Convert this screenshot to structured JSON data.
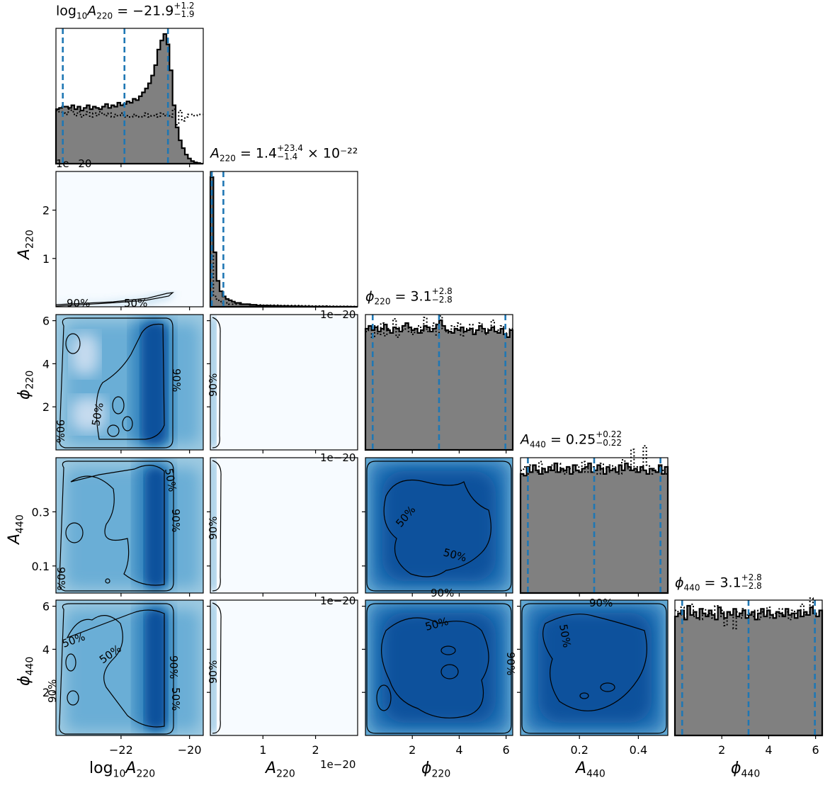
{
  "chart_data": {
    "type": "corner",
    "parameters": [
      {
        "key": "log10A220",
        "label_base": "log",
        "label_base_sub": "10",
        "label_main": "A",
        "label_sub": "220",
        "range": [
          -23.9,
          -19.6
        ],
        "ticks": [
          -22,
          -20
        ],
        "tick_labels": [
          "−22",
          "−20"
        ],
        "title_value": "−21.9",
        "title_plus": "+1.2",
        "title_minus": "−1.9",
        "quantiles": [
          -23.7,
          -21.9,
          -20.63
        ],
        "hist": [
          0.42,
          0.43,
          0.44,
          0.44,
          0.43,
          0.45,
          0.42,
          0.44,
          0.41,
          0.43,
          0.45,
          0.42,
          0.44,
          0.43,
          0.42,
          0.44,
          0.46,
          0.43,
          0.45,
          0.44,
          0.47,
          0.45,
          0.46,
          0.48,
          0.47,
          0.5,
          0.49,
          0.52,
          0.55,
          0.58,
          0.62,
          0.68,
          0.76,
          0.88,
          0.95,
          1.0,
          0.92,
          0.72,
          0.45,
          0.28,
          0.18,
          0.12,
          0.07,
          0.04,
          0.02,
          0.01,
          0.005,
          0.0
        ],
        "prior": [
          0.41,
          0.4,
          0.39,
          0.38,
          0.42,
          0.4,
          0.37,
          0.4,
          0.36,
          0.38,
          0.4,
          0.36,
          0.39,
          0.37,
          0.4,
          0.38,
          0.37,
          0.39,
          0.36,
          0.38,
          0.37,
          0.39,
          0.36,
          0.37,
          0.36,
          0.38,
          0.37,
          0.36,
          0.37,
          0.39,
          0.36,
          0.37,
          0.38,
          0.36,
          0.39,
          0.37,
          0.38,
          0.36,
          0.42,
          0.3,
          0.41,
          0.33,
          0.36,
          0.38,
          0.38,
          0.37,
          0.38,
          0.38
        ]
      },
      {
        "key": "A220",
        "label_main": "A",
        "label_sub": "220",
        "range": [
          0,
          2.8
        ],
        "ticks": [
          1,
          2
        ],
        "tick_labels": [
          "1",
          "2"
        ],
        "offset_label": "1e−20",
        "title_value": "1.4",
        "title_plus": "+23.4",
        "title_minus": "−1.4",
        "title_suffix": "× 10⁻²²",
        "quantiles": [
          0.0,
          0.014,
          0.248
        ],
        "hist": [
          1.0,
          0.42,
          0.2,
          0.12,
          0.08,
          0.06,
          0.05,
          0.04,
          0.03,
          0.03,
          0.02,
          0.02,
          0.02,
          0.015,
          0.015,
          0.01,
          0.01,
          0.01,
          0.01,
          0.008,
          0.008,
          0.007,
          0.007,
          0.006,
          0.006,
          0.005,
          0.005,
          0.004,
          0.004,
          0.004,
          0.003,
          0.003,
          0.003,
          0.002,
          0.002,
          0.002,
          0.002,
          0.002,
          0.001,
          0.001,
          0.001,
          0.001,
          0.001,
          0.001,
          0.001,
          0.001,
          0.0,
          0.0
        ],
        "prior": [
          0.4,
          0.08,
          0.05,
          0.04,
          0.03,
          0.03,
          0.02,
          0.02,
          0.02,
          0.02,
          0.02,
          0.02,
          0.015,
          0.015,
          0.015,
          0.015,
          0.015,
          0.012,
          0.012,
          0.012,
          0.012,
          0.012,
          0.01,
          0.01,
          0.01,
          0.01,
          0.01,
          0.01,
          0.01,
          0.008,
          0.008,
          0.008,
          0.008,
          0.006,
          0.006,
          0.006,
          0.006,
          0.006,
          0.005,
          0.005,
          0.005,
          0.004,
          0.004,
          0.004,
          0.004,
          0.003,
          0.003,
          0.003
        ]
      },
      {
        "key": "phi220",
        "label_main": "ϕ",
        "label_sub": "220",
        "range": [
          0,
          6.283
        ],
        "ticks": [
          2,
          4,
          6
        ],
        "tick_labels": [
          "2",
          "4",
          "6"
        ],
        "title_value": "3.1",
        "title_plus": "+2.8",
        "title_minus": "−2.8",
        "quantiles": [
          0.31,
          3.14,
          5.97
        ],
        "hist": [
          0.86,
          0.88,
          0.85,
          0.87,
          0.84,
          0.86,
          0.89,
          0.85,
          0.83,
          0.87,
          0.86,
          0.84,
          0.88,
          0.9,
          0.87,
          0.85,
          0.86,
          0.83,
          0.85,
          0.88,
          0.87,
          0.84,
          0.86,
          0.89,
          0.92,
          0.88,
          0.85,
          0.84,
          0.83,
          0.86,
          0.85,
          0.87,
          0.84,
          0.85,
          0.86,
          0.82,
          0.85,
          0.88,
          0.86,
          0.83,
          0.85,
          0.87,
          0.84,
          0.83,
          0.86,
          0.82,
          0.8,
          0.85
        ],
        "prior": [
          0.84,
          0.85,
          0.8,
          0.88,
          0.82,
          0.9,
          0.81,
          0.86,
          0.83,
          0.93,
          0.8,
          0.87,
          0.85,
          0.9,
          0.84,
          0.82,
          0.86,
          0.88,
          0.83,
          0.94,
          0.84,
          0.86,
          0.9,
          0.81,
          0.95,
          0.86,
          0.84,
          0.83,
          0.88,
          0.85,
          0.9,
          0.81,
          0.84,
          0.86,
          0.89,
          0.83,
          0.85,
          0.9,
          0.84,
          0.82,
          0.86,
          0.92,
          0.84,
          0.85,
          0.88,
          0.81,
          0.83,
          0.86
        ]
      },
      {
        "key": "A440",
        "label_main": "A",
        "label_sub": "440",
        "range": [
          0,
          0.5
        ],
        "ticks": [
          0.1,
          0.3
        ],
        "ticks_x": [
          0.2,
          0.4
        ],
        "tick_labels": [
          "0.1",
          "0.3"
        ],
        "tick_labels_x": [
          "0.2",
          "0.4"
        ],
        "title_value": "0.25",
        "title_plus": "+0.22",
        "title_minus": "−0.22",
        "quantiles": [
          0.025,
          0.25,
          0.475
        ],
        "hist": [
          0.68,
          0.67,
          0.72,
          0.69,
          0.73,
          0.7,
          0.68,
          0.71,
          0.69,
          0.72,
          0.7,
          0.74,
          0.69,
          0.71,
          0.7,
          0.72,
          0.68,
          0.73,
          0.7,
          0.69,
          0.71,
          0.72,
          0.74,
          0.69,
          0.7,
          0.73,
          0.71,
          0.68,
          0.72,
          0.7,
          0.71,
          0.69,
          0.73,
          0.7,
          0.74,
          0.72,
          0.7,
          0.71,
          0.69,
          0.72,
          0.7,
          0.68,
          0.71,
          0.7,
          0.69,
          0.73,
          0.68,
          0.72
        ],
        "prior": [
          0.7,
          0.72,
          0.68,
          0.73,
          0.7,
          0.69,
          0.75,
          0.68,
          0.71,
          0.7,
          0.73,
          0.69,
          0.74,
          0.7,
          0.68,
          0.72,
          0.71,
          0.69,
          0.73,
          0.7,
          0.75,
          0.69,
          0.71,
          0.72,
          0.7,
          0.68,
          0.74,
          0.71,
          0.69,
          0.73,
          0.7,
          0.72,
          0.68,
          0.76,
          0.71,
          0.7,
          0.82,
          0.69,
          0.72,
          0.7,
          0.84,
          0.73,
          0.68,
          0.71,
          0.69,
          0.72,
          0.7,
          0.68
        ]
      },
      {
        "key": "phi440",
        "label_main": "ϕ",
        "label_sub": "440",
        "range": [
          0,
          6.283
        ],
        "ticks": [
          2,
          4,
          6
        ],
        "tick_labels": [
          "2",
          "4",
          "6"
        ],
        "title_value": "3.1",
        "title_plus": "+2.8",
        "title_minus": "−2.8",
        "quantiles": [
          0.31,
          3.14,
          5.97
        ],
        "hist": [
          0.78,
          0.8,
          0.82,
          0.76,
          0.85,
          0.79,
          0.81,
          0.77,
          0.83,
          0.8,
          0.78,
          0.82,
          0.79,
          0.76,
          0.84,
          0.8,
          0.77,
          0.81,
          0.79,
          0.83,
          0.78,
          0.8,
          0.82,
          0.77,
          0.79,
          0.81,
          0.76,
          0.8,
          0.83,
          0.78,
          0.82,
          0.79,
          0.77,
          0.81,
          0.8,
          0.78,
          0.83,
          0.79,
          0.8,
          0.77,
          0.82,
          0.78,
          0.81,
          0.79,
          0.84,
          0.8,
          0.78,
          0.82
        ],
        "prior": [
          0.82,
          0.79,
          0.84,
          0.77,
          0.8,
          0.86,
          0.78,
          0.81,
          0.76,
          0.83,
          0.79,
          0.8,
          0.77,
          0.85,
          0.78,
          0.82,
          0.72,
          0.8,
          0.79,
          0.7,
          0.81,
          0.77,
          0.83,
          0.79,
          0.8,
          0.78,
          0.82,
          0.76,
          0.81,
          0.79,
          0.84,
          0.77,
          0.8,
          0.78,
          0.83,
          0.79,
          0.81,
          0.76,
          0.82,
          0.8,
          0.78,
          0.86,
          0.79,
          0.81,
          0.9,
          0.8,
          0.78,
          0.82
        ]
      }
    ],
    "contour_levels": [
      "50%",
      "90%"
    ],
    "colors": {
      "hist_fill": "#808080",
      "hist_edge": "#000000",
      "quantile_line": "#1f77b4",
      "density_low": "#f7fbff",
      "density_high": "#08519c",
      "contour": "#000000"
    }
  }
}
